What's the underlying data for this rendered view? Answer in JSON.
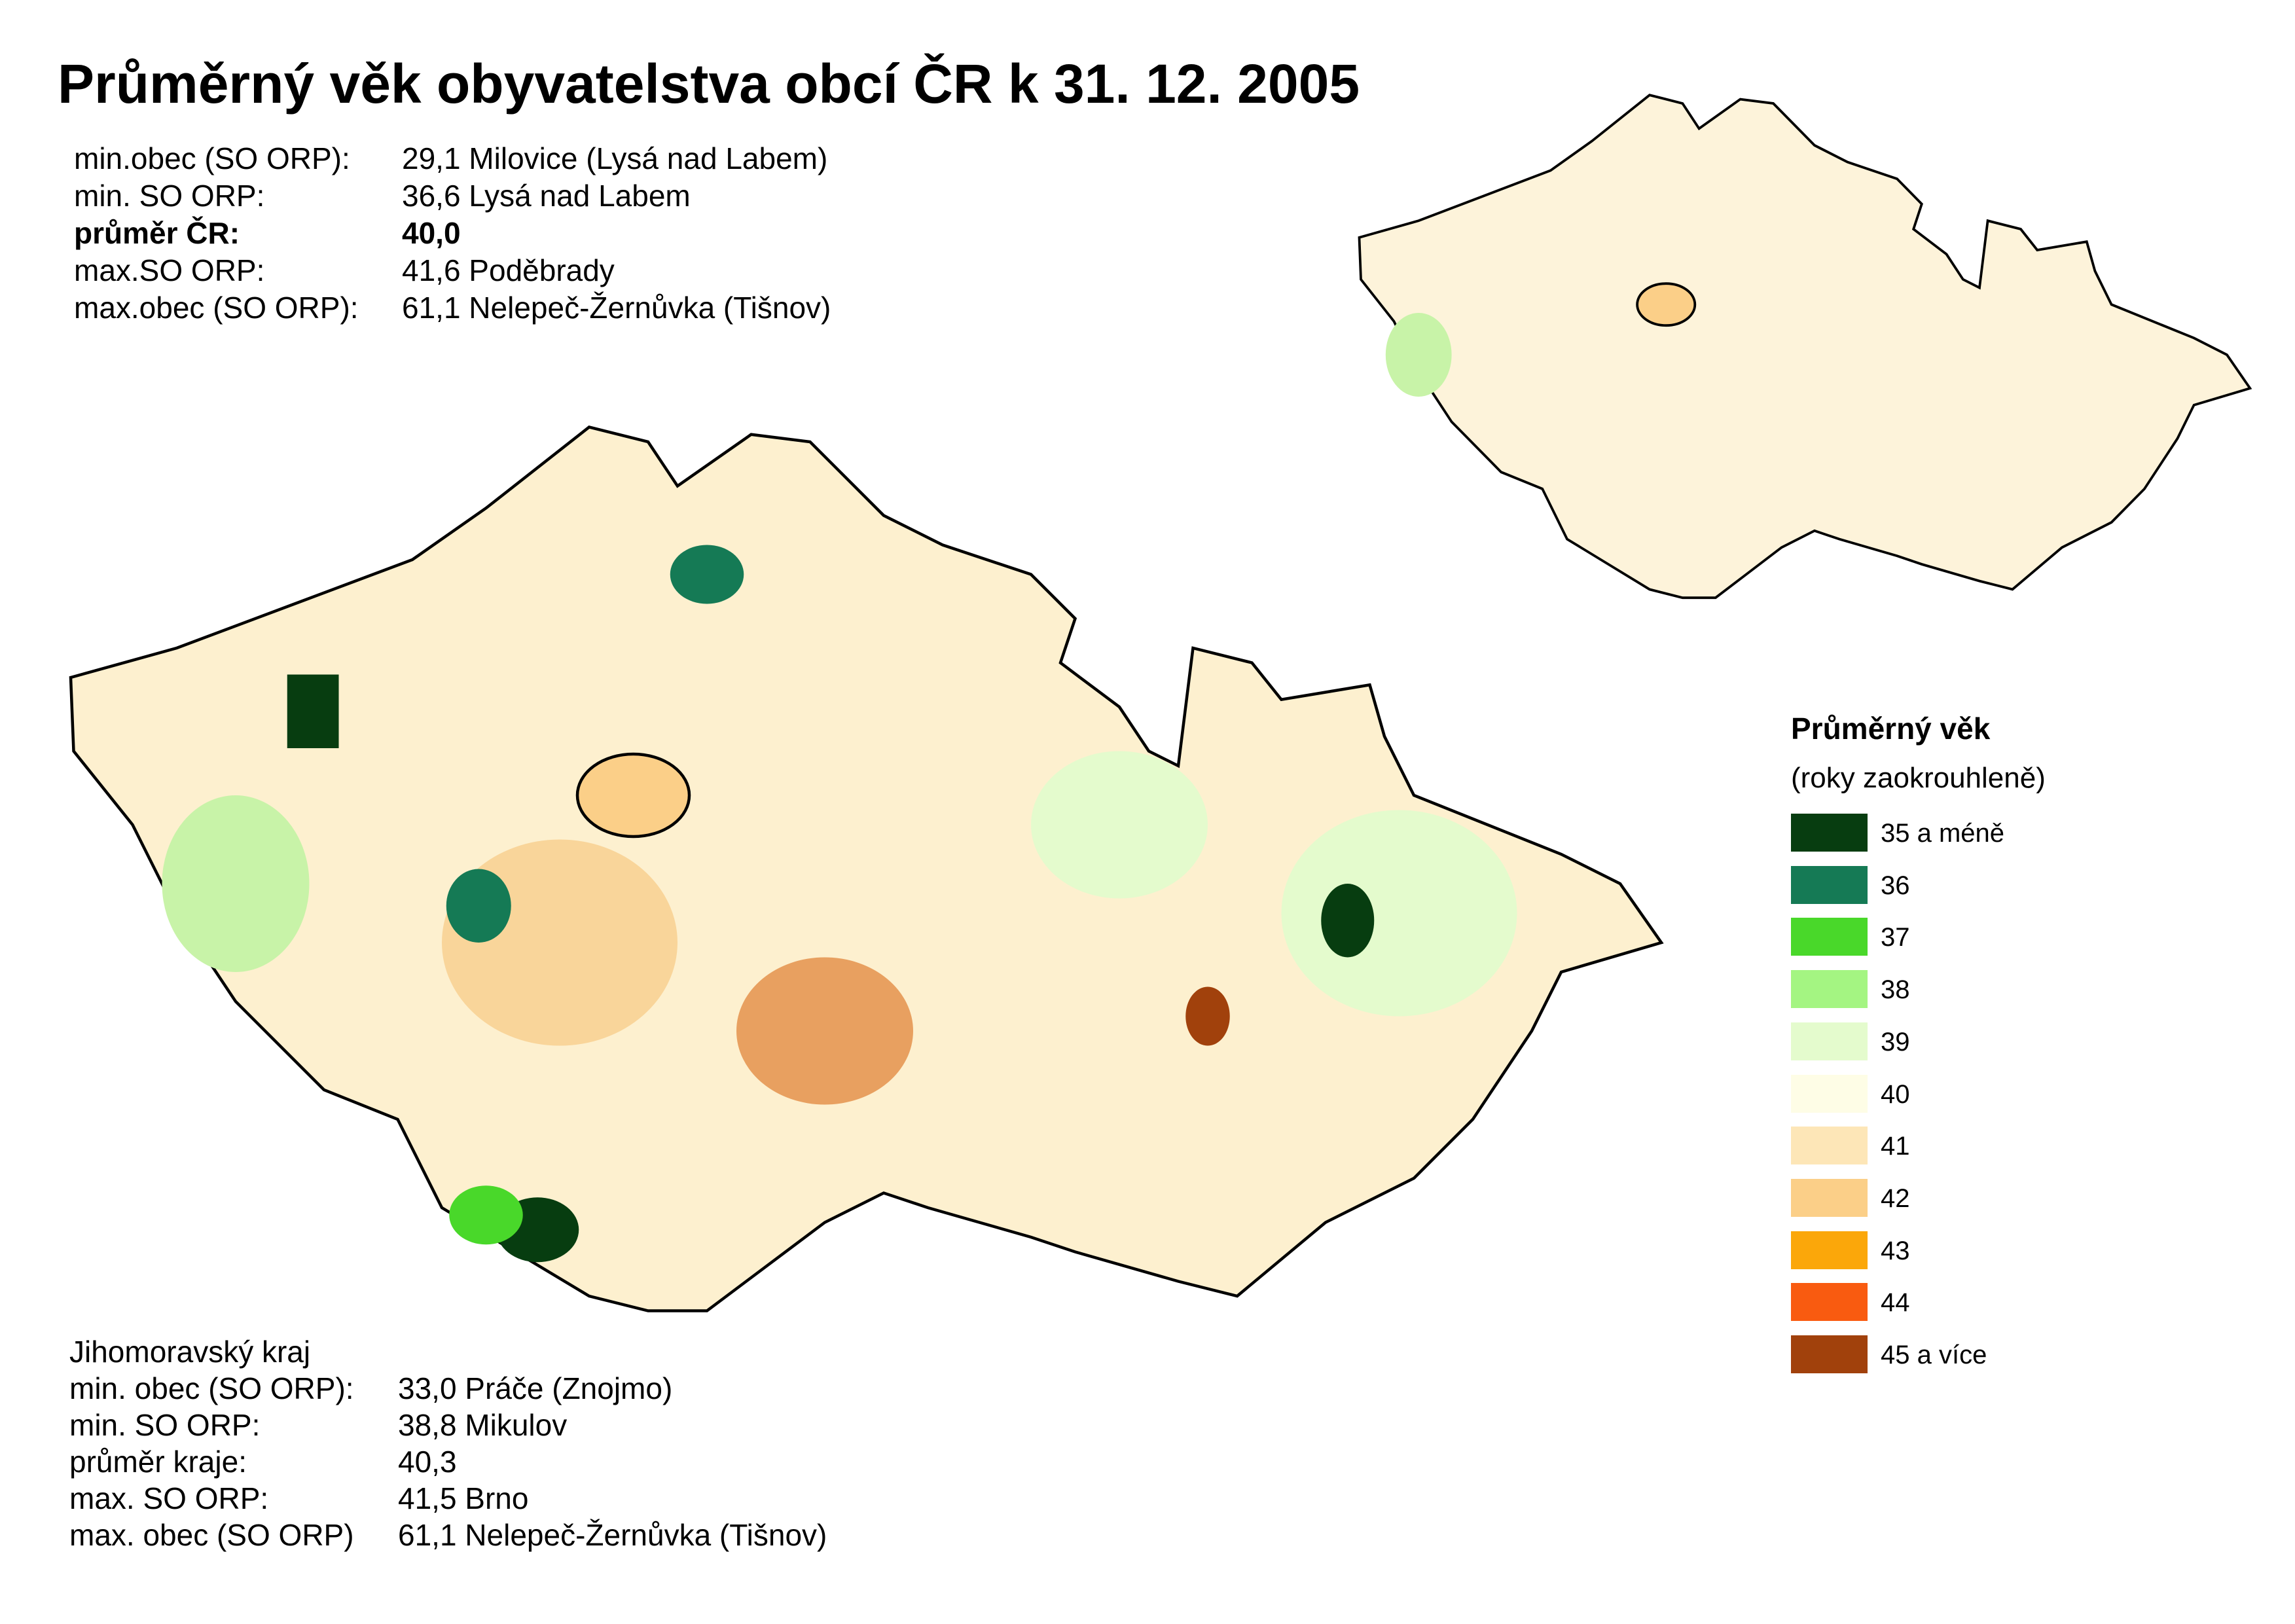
{
  "title": "Průměrný věk obyvatelstva obcí ČR k 31. 12. 2005",
  "summary_cr": [
    {
      "label": "min.obec (SO ORP):",
      "value": "29,1 Milovice (Lysá nad Labem)"
    },
    {
      "label": "min. SO ORP:",
      "value": "36,6 Lysá nad Labem"
    },
    {
      "label": "průměr ČR:",
      "value": "40,0"
    },
    {
      "label": "max.SO ORP:",
      "value": "41,6 Poděbrady"
    },
    {
      "label": "max.obec (SO ORP):",
      "value": "61,1 Nelepeč-Žernůvka (Tišnov)"
    }
  ],
  "summary_region": {
    "heading": "Jihomoravský kraj",
    "rows": [
      {
        "label": "min. obec (SO ORP):",
        "value": "33,0 Práče (Znojmo)"
      },
      {
        "label": "min. SO ORP:",
        "value": "38,8 Mikulov"
      },
      {
        "label": "průměr kraje:",
        "value": "40,3"
      },
      {
        "label": "max. SO ORP:",
        "value": "41,5 Brno"
      },
      {
        "label": "max. obec (SO ORP)",
        "value": "61,1 Nelepeč-Žernůvka (Tišnov)"
      }
    ]
  },
  "legend": {
    "title": "Průměrný věk",
    "subtitle": "(roky zaokrouhleně)",
    "items": [
      {
        "label": "35 a méně",
        "color": "#073d10"
      },
      {
        "label": "36",
        "color": "#157a55"
      },
      {
        "label": "37",
        "color": "#49d82a"
      },
      {
        "label": "38",
        "color": "#a4f582"
      },
      {
        "label": "39",
        "color": "#e4fbcd"
      },
      {
        "label": "40",
        "color": "#fefde6"
      },
      {
        "label": "41",
        "color": "#fde6b7"
      },
      {
        "label": "42",
        "color": "#fbcf88"
      },
      {
        "label": "43",
        "color": "#fba70a"
      },
      {
        "label": "44",
        "color": "#f95b10"
      },
      {
        "label": "45 a více",
        "color": "#a1410c"
      }
    ]
  }
}
